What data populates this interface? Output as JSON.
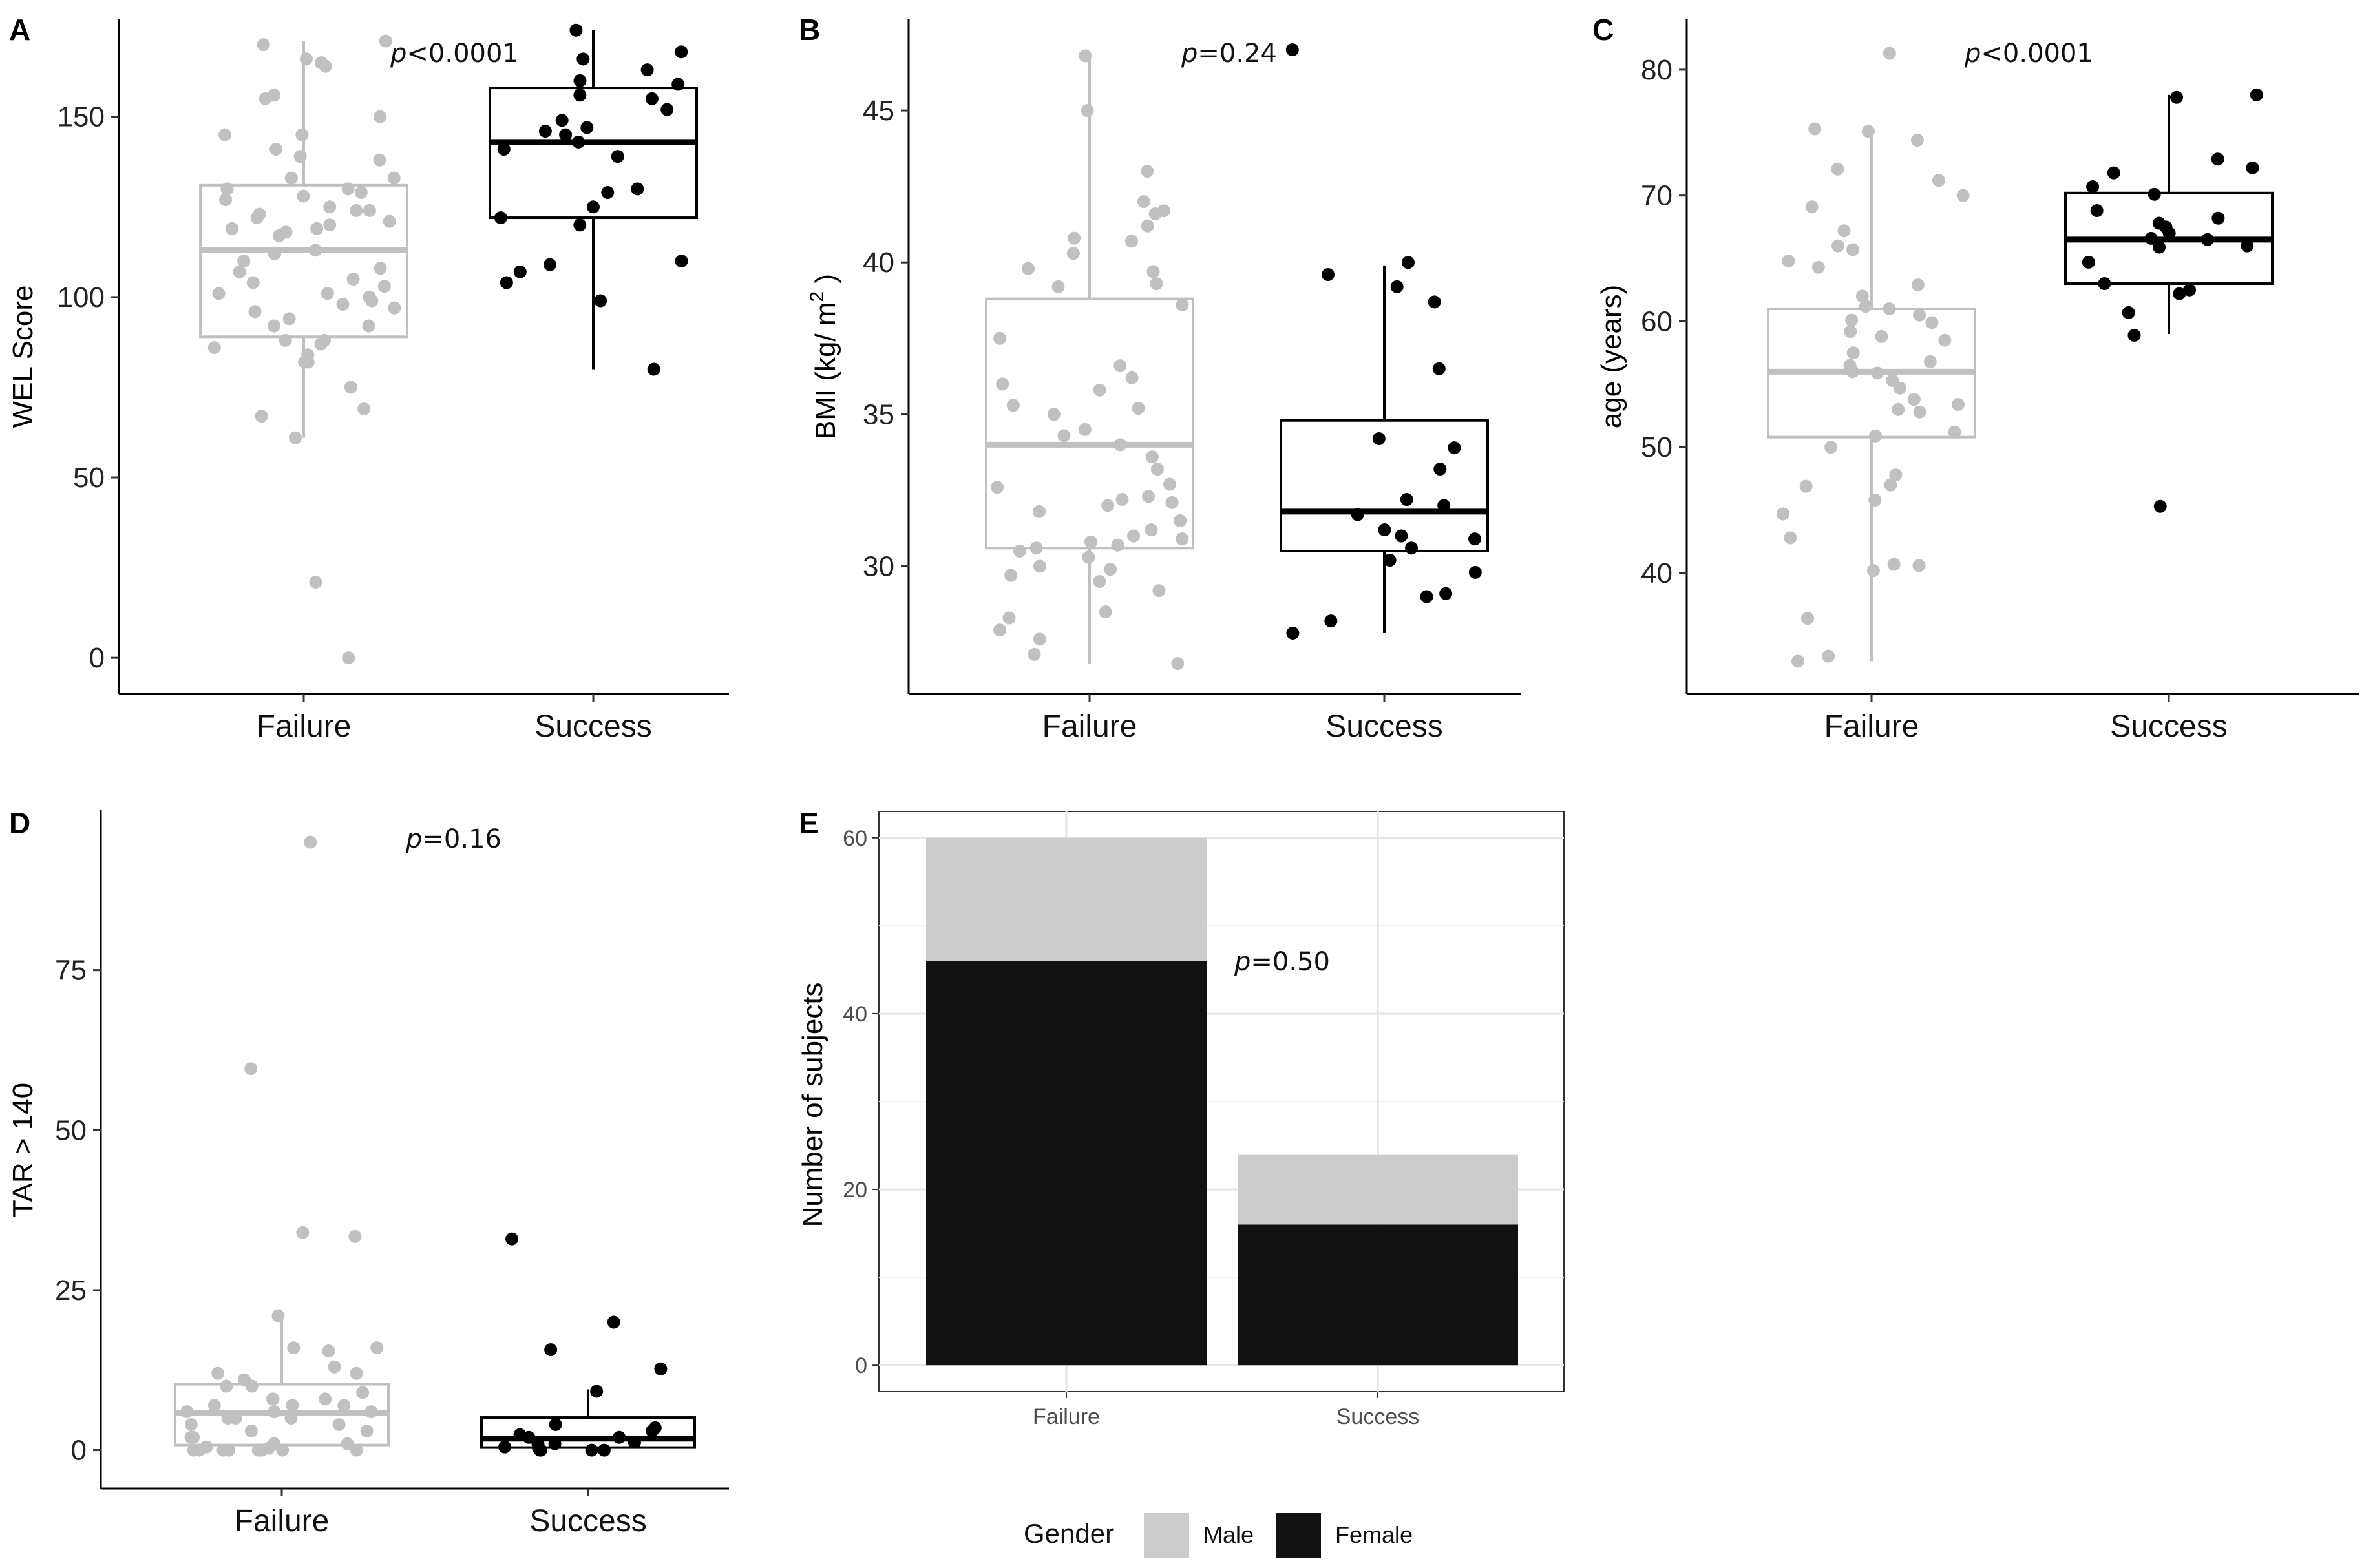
{
  "colors": {
    "failure": "#c0c0c0",
    "success": "#000000",
    "male": "#cccccc",
    "female": "#111111"
  },
  "chart_data": [
    {
      "panel": "A",
      "type": "box",
      "ylabel": "WEL Score",
      "pvalue_prefix": "p",
      "pvalue": "<0.0001",
      "ylim": [
        -10,
        177
      ],
      "yticks": [
        0,
        50,
        100,
        150
      ],
      "categories": [
        "Failure",
        "Success"
      ],
      "boxes": [
        {
          "category": "Failure",
          "q1": 89,
          "median": 113,
          "q3": 131,
          "whisker_low": 61,
          "whisker_high": 171
        },
        {
          "category": "Success",
          "q1": 122,
          "median": 143,
          "q3": 158,
          "whisker_low": 80,
          "whisker_high": 174
        }
      ],
      "points": {
        "Failure": [
          0,
          21,
          61,
          67,
          69,
          75,
          82,
          82,
          84,
          86,
          87,
          88,
          88,
          92,
          92,
          94,
          96,
          97,
          98,
          99,
          100,
          101,
          101,
          103,
          104,
          105,
          107,
          108,
          110,
          112,
          113,
          117,
          118,
          119,
          119,
          120,
          121,
          122,
          123,
          124,
          124,
          125,
          127,
          128,
          129,
          130,
          130,
          133,
          133,
          138,
          139,
          141,
          145,
          145,
          150,
          155,
          156,
          164,
          165,
          166,
          170,
          171
        ],
        "Success": [
          80,
          99,
          104,
          107,
          109,
          110,
          120,
          122,
          125,
          129,
          130,
          139,
          141,
          143,
          145,
          146,
          147,
          149,
          152,
          155,
          156,
          159,
          160,
          163,
          166,
          168,
          174
        ]
      }
    },
    {
      "panel": "B",
      "type": "box",
      "ylabel": "BMI (kg/ m²)",
      "pvalue_prefix": "p",
      "pvalue": "=0.24",
      "ylim": [
        25.8,
        48
      ],
      "yticks": [
        30,
        35,
        40,
        45
      ],
      "categories": [
        "Failure",
        "Success"
      ],
      "boxes": [
        {
          "category": "Failure",
          "q1": 30.6,
          "median": 34.0,
          "q3": 38.8,
          "whisker_low": 26.8,
          "whisker_high": 46.8
        },
        {
          "category": "Success",
          "q1": 30.5,
          "median": 31.8,
          "q3": 34.8,
          "whisker_low": 27.8,
          "whisker_high": 39.9
        }
      ],
      "points": {
        "Failure": [
          26.8,
          27.1,
          27.6,
          27.9,
          28.3,
          28.5,
          29.2,
          29.5,
          29.7,
          29.9,
          30.0,
          30.3,
          30.5,
          30.6,
          30.7,
          30.8,
          30.9,
          31.0,
          31.2,
          31.5,
          31.8,
          32.0,
          32.1,
          32.2,
          32.3,
          32.6,
          32.7,
          33.2,
          33.6,
          34.0,
          34.3,
          34.5,
          35.0,
          35.2,
          35.3,
          35.8,
          36.0,
          36.2,
          36.6,
          37.5,
          38.6,
          39.2,
          39.3,
          39.7,
          39.8,
          40.3,
          40.7,
          40.8,
          41.2,
          41.6,
          41.7,
          42.0,
          43.0,
          45.0,
          46.8
        ],
        "Success": [
          27.8,
          28.2,
          29.0,
          29.1,
          29.8,
          30.2,
          30.6,
          30.9,
          31.0,
          31.2,
          31.7,
          32.0,
          32.2,
          33.2,
          33.9,
          34.2,
          36.5,
          38.7,
          39.2,
          39.6,
          40.0,
          47.0
        ]
      }
    },
    {
      "panel": "C",
      "type": "box",
      "ylabel": "age (years)",
      "pvalue_prefix": "p",
      "pvalue": "<0.0001",
      "ylim": [
        30.4,
        84
      ],
      "yticks": [
        40,
        50,
        60,
        70,
        80
      ],
      "categories": [
        "Failure",
        "Success"
      ],
      "boxes": [
        {
          "category": "Failure",
          "q1": 50.8,
          "median": 56.0,
          "q3": 61.0,
          "whisker_low": 33.0,
          "whisker_high": 75.0
        },
        {
          "category": "Success",
          "q1": 63.0,
          "median": 66.5,
          "q3": 70.2,
          "whisker_low": 59.0,
          "whisker_high": 78.0
        }
      ],
      "points": {
        "Failure": [
          33.0,
          33.4,
          36.4,
          40.2,
          40.6,
          40.7,
          42.8,
          44.7,
          45.8,
          46.9,
          47.0,
          47.8,
          50.0,
          50.9,
          51.2,
          52.8,
          53.0,
          53.4,
          53.8,
          54.7,
          55.3,
          55.9,
          56.0,
          56.5,
          56.8,
          57.5,
          58.5,
          58.8,
          59.2,
          59.9,
          60.1,
          60.5,
          61.0,
          61.2,
          62.0,
          62.9,
          64.3,
          64.8,
          65.7,
          66.0,
          67.2,
          69.1,
          70.0,
          71.2,
          72.1,
          74.4,
          75.1,
          75.3,
          81.3
        ],
        "Success": [
          45.3,
          58.9,
          60.7,
          62.2,
          62.5,
          63.0,
          64.7,
          65.9,
          66.0,
          66.5,
          66.6,
          67.0,
          67.5,
          67.8,
          68.2,
          68.8,
          70.1,
          70.7,
          71.8,
          72.2,
          72.9,
          77.8,
          78.0
        ]
      }
    },
    {
      "panel": "D",
      "type": "box",
      "ylabel": "TAR > 140",
      "pvalue_prefix": "p",
      "pvalue": "=0.16",
      "ylim": [
        -6,
        100
      ],
      "yticks": [
        0,
        25,
        50,
        75
      ],
      "categories": [
        "Failure",
        "Success"
      ],
      "boxes": [
        {
          "category": "Failure",
          "q1": 0.8,
          "median": 5.8,
          "q3": 10.3,
          "whisker_low": 0,
          "whisker_high": 21
        },
        {
          "category": "Success",
          "q1": 0.4,
          "median": 1.8,
          "q3": 5.1,
          "whisker_low": 0,
          "whisker_high": 9.5
        }
      ],
      "points": {
        "Failure": [
          0,
          0,
          0,
          0,
          0,
          0,
          0,
          0,
          0.3,
          0.5,
          1,
          1,
          2,
          2,
          3,
          3,
          4,
          4,
          5,
          5,
          5,
          6,
          6,
          6,
          7,
          7,
          7,
          8,
          8,
          8,
          9,
          10,
          10,
          11,
          12,
          12,
          13,
          15.5,
          16,
          16,
          21,
          33.4,
          34,
          59.6,
          95
        ],
        "Success": [
          0,
          0,
          0,
          0,
          0.3,
          0.5,
          1,
          1,
          1.2,
          2,
          2,
          2.4,
          3,
          3.5,
          4,
          9.2,
          12.7,
          15.7,
          20,
          33
        ]
      }
    },
    {
      "panel": "E",
      "type": "stacked_bar",
      "ylabel": "Number of subjects",
      "pvalue_prefix": "p",
      "pvalue": "=0.50",
      "categories": [
        "Failure",
        "Success"
      ],
      "ylim": [
        -3,
        63
      ],
      "yticks": [
        0,
        20,
        40,
        60
      ],
      "series": [
        {
          "name": "Female",
          "values": [
            46,
            16
          ]
        },
        {
          "name": "Male",
          "values": [
            14,
            8
          ]
        }
      ]
    }
  ],
  "legend": {
    "title": "Gender",
    "items": [
      "Male",
      "Female"
    ]
  }
}
